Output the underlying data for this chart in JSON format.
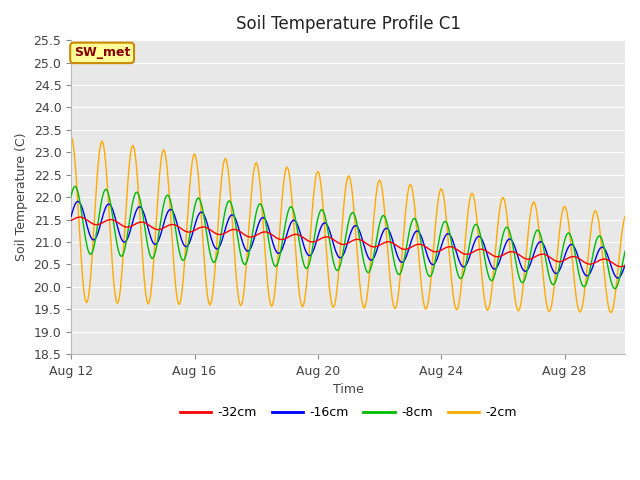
{
  "title": "Soil Temperature Profile C1",
  "xlabel": "Time",
  "ylabel": "Soil Temperature (C)",
  "ylim": [
    18.5,
    25.5
  ],
  "yticks": [
    18.5,
    19.0,
    19.5,
    20.0,
    20.5,
    21.0,
    21.5,
    22.0,
    22.5,
    23.0,
    23.5,
    24.0,
    24.5,
    25.0,
    25.5
  ],
  "start_day": 12,
  "days": 18,
  "colors": {
    "-32cm": "#ff0000",
    "-16cm": "#0000ff",
    "-8cm": "#00bb00",
    "-2cm": "#ffaa00"
  },
  "legend_labels": [
    "-32cm",
    "-16cm",
    "-8cm",
    "-2cm"
  ],
  "annotation_text": "SW_met",
  "annotation_bg": "#ffff99",
  "annotation_border": "#cc8800",
  "annotation_text_color": "#880000",
  "plot_bg": "#e8e8e8",
  "grid_color": "#ffffff",
  "title_fontsize": 12,
  "label_fontsize": 9,
  "tick_fontsize": 9,
  "legend_fontsize": 9,
  "xtick_days": [
    12,
    16,
    20,
    24,
    28
  ]
}
